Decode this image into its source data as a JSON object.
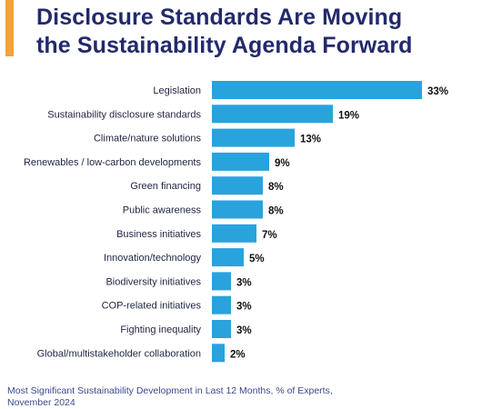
{
  "title": {
    "line1": "Disclosure Standards Are Moving",
    "line2": "the Sustainability Agenda Forward"
  },
  "colors": {
    "title": "#232a6b",
    "accent": "#f2a33a",
    "bar": "#29a3dc",
    "category_label": "#1f2340",
    "value_label": "#111111",
    "footnote": "#3b4a8c"
  },
  "footnote": {
    "line1": "Most Significant Sustainability Development in Last 12 Months, % of Experts,",
    "line2": "November 2024"
  },
  "chart_data": {
    "type": "bar",
    "orientation": "horizontal",
    "categories": [
      "Legislation",
      "Sustainability disclosure standards",
      "Climate/nature solutions",
      "Renewables / low-carbon developments",
      "Green financing",
      "Public awareness",
      "Business initiatives",
      "Innovation/technology",
      "Biodiversity initiatives",
      "COP-related initiatives",
      "Fighting inequality",
      "Global/multistakeholder collaboration"
    ],
    "values": [
      33,
      19,
      13,
      9,
      8,
      8,
      7,
      5,
      3,
      3,
      3,
      2
    ],
    "value_labels": [
      "33%",
      "19%",
      "13%",
      "9%",
      "8%",
      "8%",
      "7%",
      "5%",
      "3%",
      "3%",
      "3%",
      "2%"
    ],
    "xlim": [
      0,
      33
    ],
    "grid": false,
    "legend": "none"
  }
}
